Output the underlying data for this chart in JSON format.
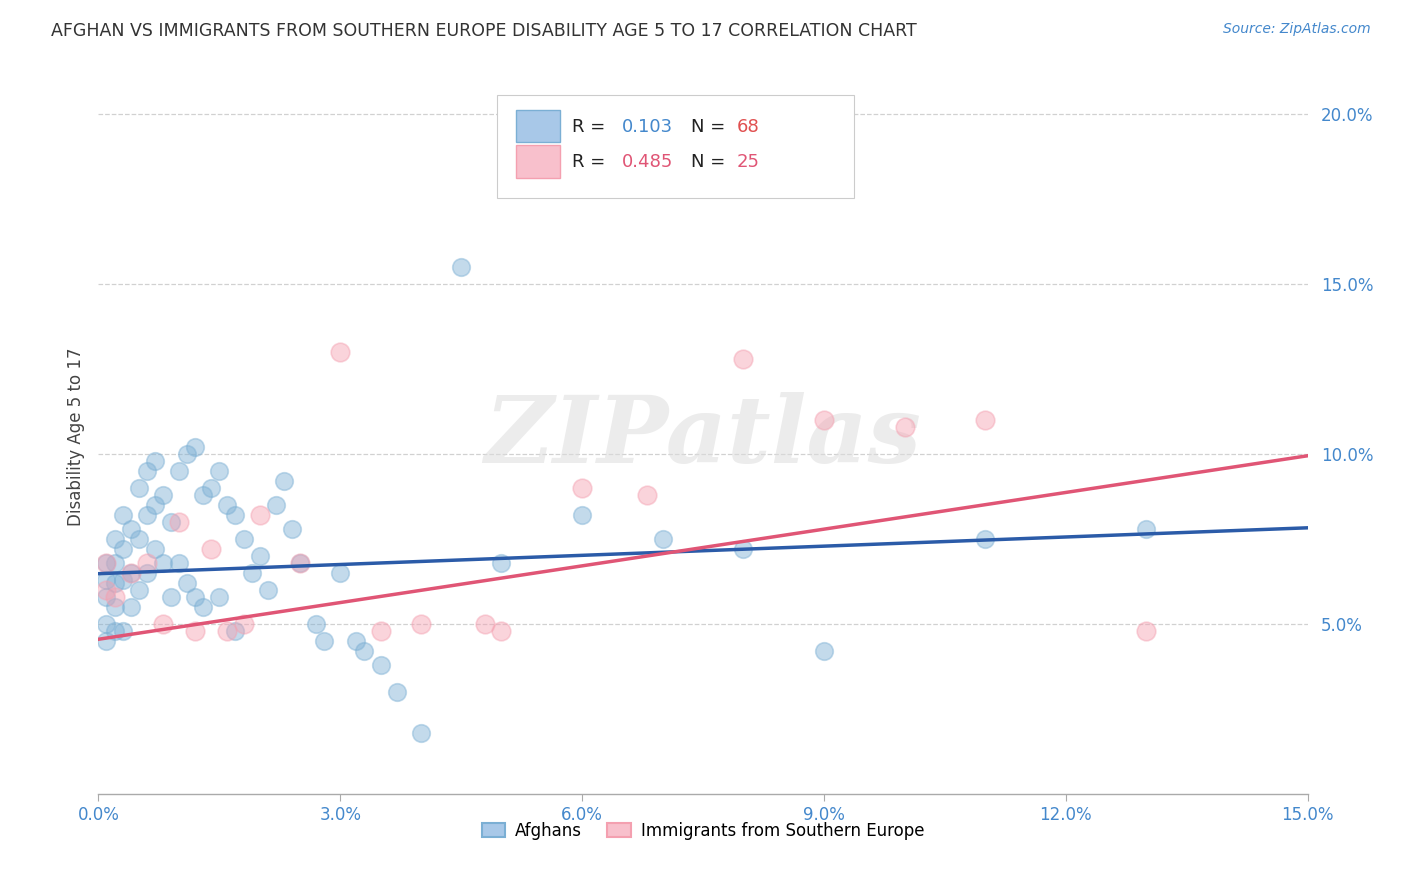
{
  "title": "AFGHAN VS IMMIGRANTS FROM SOUTHERN EUROPE DISABILITY AGE 5 TO 17 CORRELATION CHART",
  "source": "Source: ZipAtlas.com",
  "ylabel": "Disability Age 5 to 17",
  "xlim": [
    0.0,
    0.15
  ],
  "ylim": [
    0.0,
    0.21
  ],
  "xtick_vals": [
    0.0,
    0.03,
    0.06,
    0.09,
    0.12,
    0.15
  ],
  "ytick_vals": [
    0.05,
    0.1,
    0.15,
    0.2
  ],
  "ytick_labels": [
    "5.0%",
    "10.0%",
    "15.0%",
    "20.0%"
  ],
  "xtick_labels": [
    "0.0%",
    "3.0%",
    "6.0%",
    "9.0%",
    "12.0%",
    "15.0%"
  ],
  "blue_scatter_color": "#7BAFD4",
  "pink_scatter_color": "#F4A0B0",
  "blue_line_color": "#2B5BA8",
  "pink_line_color": "#E05575",
  "blue_fill_color": "#A8C8E8",
  "pink_fill_color": "#F8C0CC",
  "grid_color": "#CCCCCC",
  "tick_color": "#4488CC",
  "title_color": "#333333",
  "source_color": "#4488CC",
  "watermark_text": "ZIPatlas",
  "watermark_color": "#DDDDDD",
  "R_blue": 0.103,
  "N_blue": 68,
  "R_pink": 0.485,
  "N_pink": 25,
  "blue_intercept": 0.0648,
  "blue_slope": 0.09,
  "pink_intercept": 0.0455,
  "pink_slope": 0.36,
  "afghans_legend": "Afghans",
  "immigrants_legend": "Immigrants from Southern Europe",
  "blue_x": [
    0.001,
    0.001,
    0.001,
    0.001,
    0.001,
    0.002,
    0.002,
    0.002,
    0.002,
    0.002,
    0.003,
    0.003,
    0.003,
    0.003,
    0.004,
    0.004,
    0.004,
    0.005,
    0.005,
    0.005,
    0.006,
    0.006,
    0.006,
    0.007,
    0.007,
    0.007,
    0.008,
    0.008,
    0.009,
    0.009,
    0.01,
    0.01,
    0.011,
    0.011,
    0.012,
    0.012,
    0.013,
    0.013,
    0.014,
    0.015,
    0.015,
    0.016,
    0.017,
    0.017,
    0.018,
    0.019,
    0.02,
    0.021,
    0.022,
    0.023,
    0.024,
    0.025,
    0.027,
    0.028,
    0.03,
    0.032,
    0.033,
    0.035,
    0.037,
    0.04,
    0.045,
    0.05,
    0.06,
    0.07,
    0.08,
    0.09,
    0.11,
    0.13
  ],
  "blue_y": [
    0.068,
    0.063,
    0.058,
    0.05,
    0.045,
    0.075,
    0.068,
    0.062,
    0.055,
    0.048,
    0.082,
    0.072,
    0.063,
    0.048,
    0.078,
    0.065,
    0.055,
    0.09,
    0.075,
    0.06,
    0.095,
    0.082,
    0.065,
    0.098,
    0.085,
    0.072,
    0.088,
    0.068,
    0.08,
    0.058,
    0.095,
    0.068,
    0.1,
    0.062,
    0.102,
    0.058,
    0.088,
    0.055,
    0.09,
    0.095,
    0.058,
    0.085,
    0.082,
    0.048,
    0.075,
    0.065,
    0.07,
    0.06,
    0.085,
    0.092,
    0.078,
    0.068,
    0.05,
    0.045,
    0.065,
    0.045,
    0.042,
    0.038,
    0.03,
    0.018,
    0.155,
    0.068,
    0.082,
    0.075,
    0.072,
    0.042,
    0.075,
    0.078
  ],
  "pink_x": [
    0.001,
    0.001,
    0.002,
    0.004,
    0.006,
    0.008,
    0.01,
    0.012,
    0.014,
    0.016,
    0.018,
    0.02,
    0.025,
    0.03,
    0.035,
    0.04,
    0.048,
    0.05,
    0.06,
    0.068,
    0.08,
    0.09,
    0.1,
    0.11,
    0.13
  ],
  "pink_y": [
    0.068,
    0.06,
    0.058,
    0.065,
    0.068,
    0.05,
    0.08,
    0.048,
    0.072,
    0.048,
    0.05,
    0.082,
    0.068,
    0.13,
    0.048,
    0.05,
    0.05,
    0.048,
    0.09,
    0.088,
    0.128,
    0.11,
    0.108,
    0.11,
    0.048
  ]
}
